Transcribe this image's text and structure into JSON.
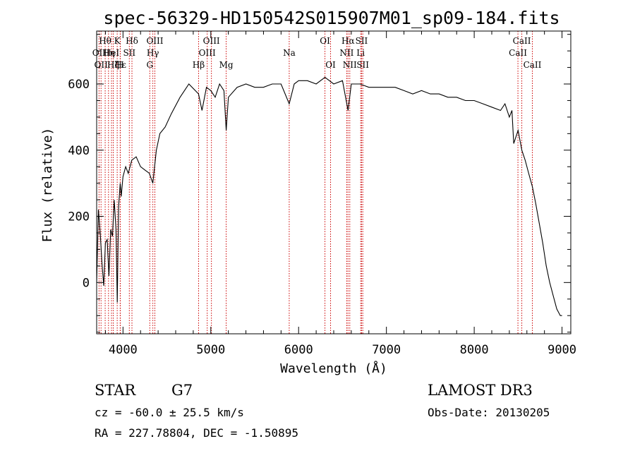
{
  "chart_data": {
    "type": "line",
    "title": "spec-56329-HD150542S015907M01_sp09-184.fits",
    "xlabel": "Wavelength (Å)",
    "ylabel": "Flux (relative)",
    "xlim": [
      3700,
      9100
    ],
    "ylim": [
      -155,
      760
    ],
    "xticks": [
      4000,
      5000,
      6000,
      7000,
      8000,
      9000
    ],
    "yticks": [
      0,
      200,
      400,
      600
    ],
    "series": [
      {
        "x": [
          3700,
          3720,
          3740,
          3760,
          3780,
          3800,
          3820,
          3840,
          3860,
          3880,
          3900,
          3920,
          3935,
          3950,
          3968,
          3980,
          4000,
          4030,
          4060,
          4100,
          4150,
          4200,
          4250,
          4300,
          4340,
          4380,
          4420,
          4480,
          4550,
          4650,
          4750,
          4860,
          4900,
          4950,
          5000,
          5050,
          5100,
          5150,
          5175,
          5200,
          5300,
          5400,
          5500,
          5600,
          5700,
          5800,
          5893,
          5950,
          6000,
          6100,
          6200,
          6300,
          6400,
          6500,
          6563,
          6600,
          6700,
          6800,
          6900,
          7000,
          7100,
          7200,
          7300,
          7400,
          7500,
          7600,
          7700,
          7800,
          7900,
          8000,
          8100,
          8200,
          8300,
          8350,
          8400,
          8430,
          8450,
          8500,
          8542,
          8580,
          8620,
          8662,
          8700,
          8740,
          8780,
          8820,
          8860,
          8900,
          8940,
          8980,
          9000
        ],
        "values": [
          0,
          220,
          150,
          60,
          -10,
          120,
          130,
          20,
          160,
          140,
          250,
          160,
          -60,
          230,
          300,
          260,
          320,
          350,
          330,
          370,
          380,
          350,
          340,
          330,
          300,
          400,
          450,
          470,
          510,
          560,
          600,
          570,
          520,
          590,
          580,
          560,
          600,
          580,
          460,
          560,
          590,
          600,
          590,
          590,
          600,
          600,
          540,
          600,
          610,
          610,
          600,
          620,
          600,
          610,
          520,
          600,
          600,
          590,
          590,
          590,
          590,
          580,
          570,
          580,
          570,
          570,
          560,
          560,
          550,
          550,
          540,
          530,
          520,
          540,
          500,
          520,
          420,
          460,
          400,
          370,
          330,
          290,
          240,
          180,
          120,
          50,
          0,
          -40,
          -80,
          -100,
          -100
        ]
      }
    ],
    "lines": [
      {
        "w": 3727,
        "name": "OII",
        "row": 2
      },
      {
        "w": 3750,
        "name": "OII",
        "row": 3
      },
      {
        "w": 3797,
        "name": "Hθ",
        "row": 1
      },
      {
        "w": 3835,
        "name": "Hη",
        "row": 2
      },
      {
        "w": 3869,
        "name": "HeI",
        "row": 2
      },
      {
        "w": 3889,
        "name": "Hζ",
        "row": 3
      },
      {
        "w": 3934,
        "name": "K",
        "row": 1
      },
      {
        "w": 3968,
        "name": "H",
        "row": 3
      },
      {
        "w": 3970,
        "name": "Hε",
        "row": 3
      },
      {
        "w": 4072,
        "name": "SII",
        "row": 2
      },
      {
        "w": 4102,
        "name": "Hδ",
        "row": 1
      },
      {
        "w": 4305,
        "name": "G",
        "row": 3
      },
      {
        "w": 4340,
        "name": "Hγ",
        "row": 2
      },
      {
        "w": 4363,
        "name": "OIII",
        "row": 1
      },
      {
        "w": 4861,
        "name": "Hβ",
        "row": 3
      },
      {
        "w": 4959,
        "name": "OIII",
        "row": 2
      },
      {
        "w": 5007,
        "name": "OIII",
        "row": 1
      },
      {
        "w": 5175,
        "name": "Mg",
        "row": 3
      },
      {
        "w": 5893,
        "name": "Na",
        "row": 2
      },
      {
        "w": 6300,
        "name": "OI",
        "row": 1
      },
      {
        "w": 6364,
        "name": "OI",
        "row": 3
      },
      {
        "w": 6548,
        "name": "NII",
        "row": 2
      },
      {
        "w": 6563,
        "name": "Hα",
        "row": 1
      },
      {
        "w": 6583,
        "name": "NII",
        "row": 3
      },
      {
        "w": 6707,
        "name": "Li",
        "row": 2
      },
      {
        "w": 6717,
        "name": "SII",
        "row": 1
      },
      {
        "w": 6731,
        "name": "SII",
        "row": 3
      },
      {
        "w": 8498,
        "name": "CaII",
        "row": 2
      },
      {
        "w": 8542,
        "name": "CaII",
        "row": 1
      },
      {
        "w": 8662,
        "name": "CaII",
        "row": 3
      }
    ],
    "vline_color": "#cc0000",
    "grid": false,
    "legend": "none"
  },
  "info": {
    "class": "STAR",
    "subclass": "G7",
    "survey": "LAMOST DR3",
    "redshift": "cz = -60.0 ± 25.5 km/s",
    "obs_date": "Obs-Date: 20130205",
    "coords": "RA = 227.78804, DEC =  -1.50895"
  }
}
